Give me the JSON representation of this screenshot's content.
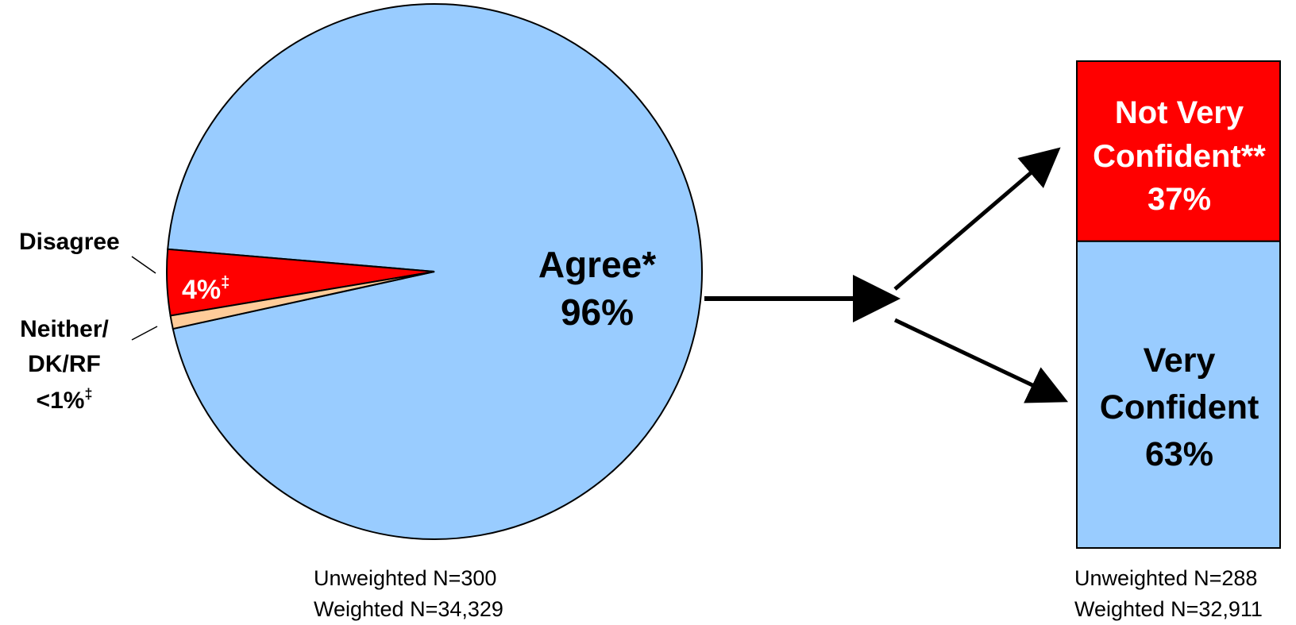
{
  "chart_data": [
    {
      "type": "pie",
      "slices": [
        {
          "label": "Agree*",
          "value": 96,
          "value_text": "96%",
          "color": "#99CCFF"
        },
        {
          "label": "Disagree",
          "value": 4,
          "value_text": "4%",
          "marker": "‡",
          "color": "#FF0000"
        },
        {
          "label": "Neither/ DK/RF",
          "value": 0.8,
          "value_text": "<1%",
          "marker": "‡",
          "color": "#FFCC99"
        }
      ],
      "notes": [
        "Unweighted N=300",
        "Weighted N=34,329"
      ]
    },
    {
      "type": "bar",
      "stacked": true,
      "segments": [
        {
          "label": "Not Very Confident**",
          "label_lines": [
            "Not Very",
            "Confident**"
          ],
          "value": 37,
          "value_text": "37%",
          "color": "#FF0000"
        },
        {
          "label": "Very Confident",
          "label_lines": [
            "Very",
            "Confident"
          ],
          "value": 63,
          "value_text": "63%",
          "color": "#99CCFF"
        }
      ],
      "notes": [
        "Unweighted N=288",
        "Weighted N=32,911"
      ]
    }
  ]
}
